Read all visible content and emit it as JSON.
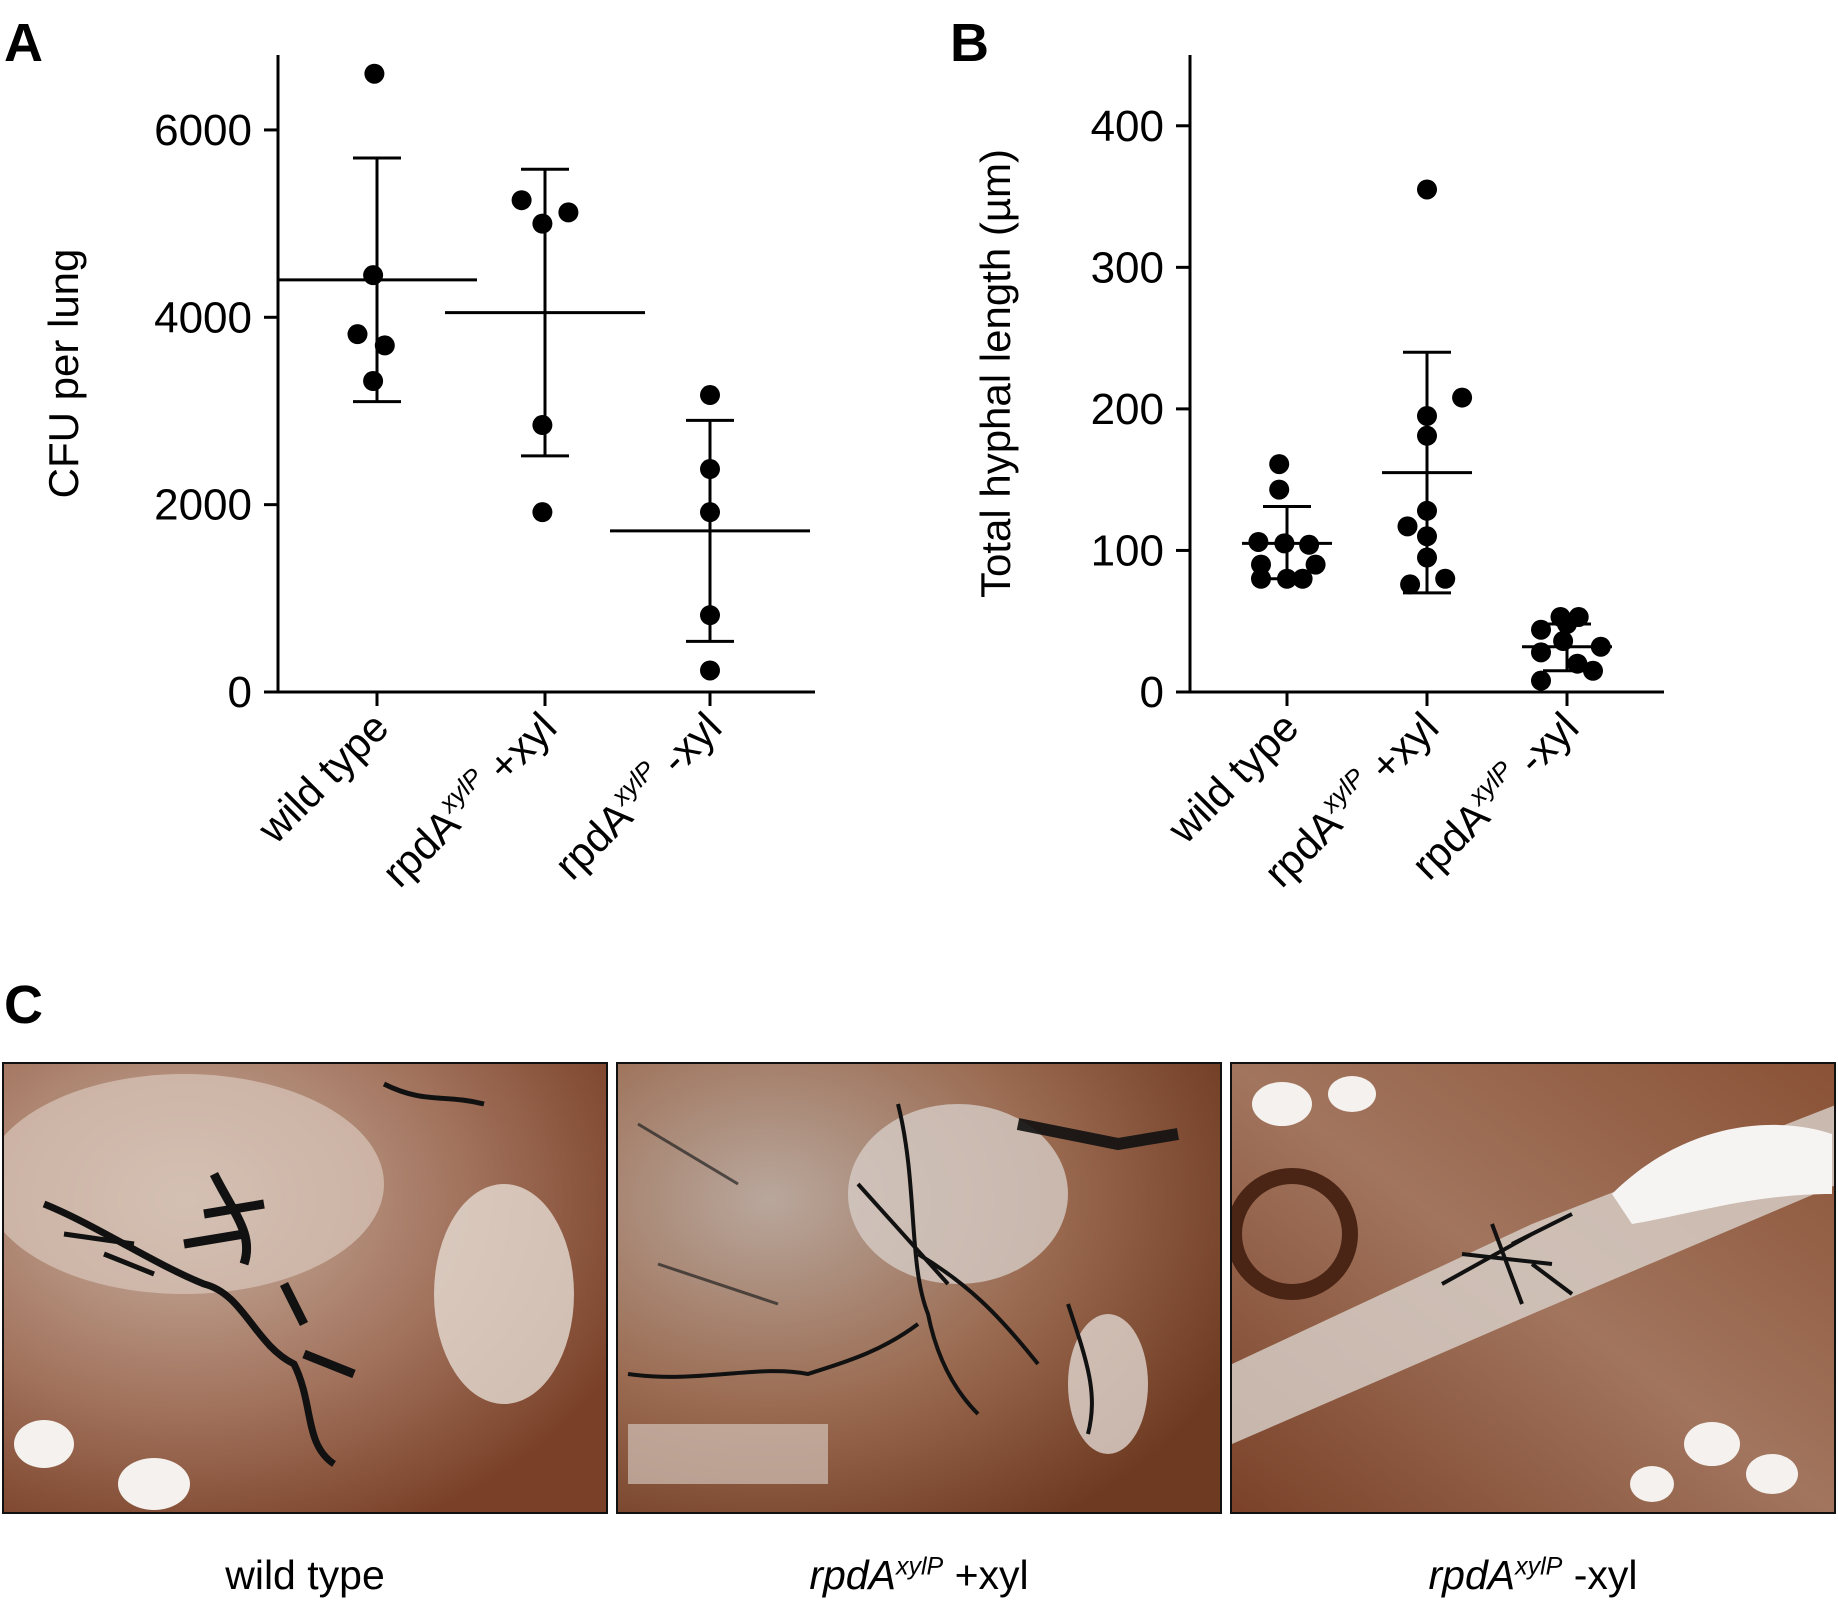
{
  "panels": {
    "a": "A",
    "b": "B",
    "c": "C"
  },
  "chart_data": [
    {
      "type": "scatter",
      "panel": "A",
      "ylabel": "CFU per lung",
      "ylim": [
        0,
        6800
      ],
      "yticks": [
        0,
        2000,
        4000,
        6000
      ],
      "categories": [
        "wild type",
        "rpdA xylP +xyl",
        "rpdA xylP -xyl"
      ],
      "groups": [
        {
          "label_main": "wild type",
          "label_sup": "",
          "label_suffix": "",
          "points": [
            [
              -0.02,
              6600
            ],
            [
              -0.03,
              4450
            ],
            [
              -0.15,
              3820
            ],
            [
              0.06,
              3700
            ],
            [
              -0.03,
              3320
            ]
          ],
          "mean": 4400,
          "sd_low": 3100,
          "sd_high": 5700
        },
        {
          "label_main": "rpdA",
          "label_sup": "xylP",
          "label_suffix": "+xyl",
          "points": [
            [
              -0.18,
              5250
            ],
            [
              -0.02,
              5000
            ],
            [
              0.18,
              5120
            ],
            [
              -0.02,
              2850
            ],
            [
              -0.02,
              1920
            ]
          ],
          "mean": 4050,
          "sd_low": 2520,
          "sd_high": 5580
        },
        {
          "label_main": "rpdA",
          "label_sup": "xylP",
          "label_suffix": "-xyl",
          "points": [
            [
              0.0,
              3170
            ],
            [
              0.0,
              2380
            ],
            [
              0.0,
              1920
            ],
            [
              0.0,
              820
            ],
            [
              0.0,
              230
            ]
          ],
          "mean": 1720,
          "sd_low": 540,
          "sd_high": 2900
        }
      ]
    },
    {
      "type": "scatter",
      "panel": "B",
      "ylabel": "Total hyphal length (µm)",
      "ylim": [
        0,
        450
      ],
      "yticks": [
        0,
        100,
        200,
        300,
        400
      ],
      "categories": [
        "wild type",
        "rpdA xylP +xyl",
        "rpdA xylP -xyl"
      ],
      "groups": [
        {
          "label_main": "wild type",
          "label_sup": "",
          "label_suffix": "",
          "points": [
            [
              -0.06,
              161
            ],
            [
              -0.06,
              143
            ],
            [
              -0.22,
              106
            ],
            [
              -0.02,
              105
            ],
            [
              0.17,
              104
            ],
            [
              -0.2,
              90
            ],
            [
              0.22,
              90
            ],
            [
              -0.2,
              80
            ],
            [
              0.0,
              80
            ],
            [
              0.12,
              80
            ]
          ],
          "mean": 105,
          "sd_low": 80,
          "sd_high": 131
        },
        {
          "label_main": "rpdA",
          "label_sup": "xylP",
          "label_suffix": "+xyl",
          "points": [
            [
              0.0,
              355
            ],
            [
              0.27,
              208
            ],
            [
              0.0,
              195
            ],
            [
              0.0,
              181
            ],
            [
              0.0,
              128
            ],
            [
              -0.15,
              117
            ],
            [
              0.0,
              110
            ],
            [
              0.0,
              95
            ],
            [
              0.14,
              80
            ],
            [
              -0.13,
              76
            ]
          ],
          "mean": 155,
          "sd_low": 70,
          "sd_high": 240
        },
        {
          "label_main": "rpdA",
          "label_sup": "xylP",
          "label_suffix": "-xyl",
          "points": [
            [
              -0.05,
              53
            ],
            [
              0.09,
              53
            ],
            [
              0.0,
              48
            ],
            [
              -0.2,
              44
            ],
            [
              -0.03,
              36
            ],
            [
              0.26,
              32
            ],
            [
              -0.2,
              28
            ],
            [
              0.08,
              20
            ],
            [
              0.2,
              15
            ],
            [
              -0.2,
              8
            ]
          ],
          "mean": 32,
          "sd_low": 15,
          "sd_high": 48
        }
      ]
    }
  ],
  "micrographs": {
    "captions": [
      {
        "main": "wild type",
        "sup": "",
        "suffix": ""
      },
      {
        "main": "rpdA",
        "sup": "xylP",
        "suffix": " +xyl"
      },
      {
        "main": "rpdA",
        "sup": "xylP",
        "suffix": " -xyl"
      }
    ]
  },
  "colors": {
    "ink": "#000000",
    "tissue_light": "#d9cfc8",
    "tissue_brown": "#8b4a2b",
    "tissue_dark": "#5a2c17",
    "hyphae": "#101010",
    "alveolar_space": "#f6f4f2"
  }
}
